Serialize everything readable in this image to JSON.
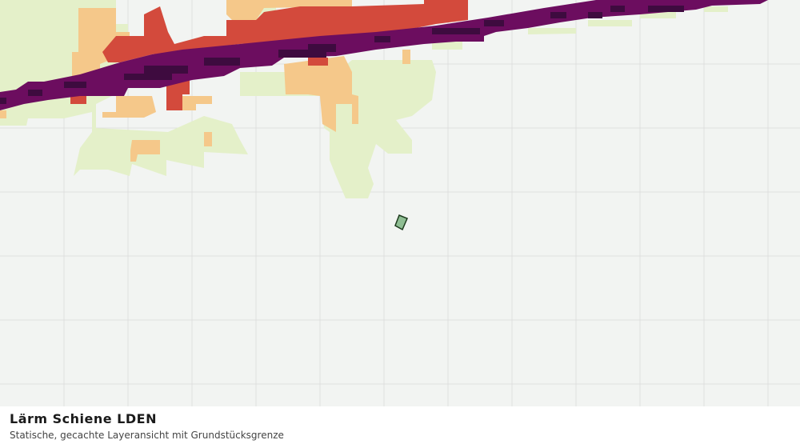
{
  "title": "Lärm Schiene LDEN",
  "subtitle": "Statische, gecachte Layeransicht mit Grundstücksgrenze"
}
